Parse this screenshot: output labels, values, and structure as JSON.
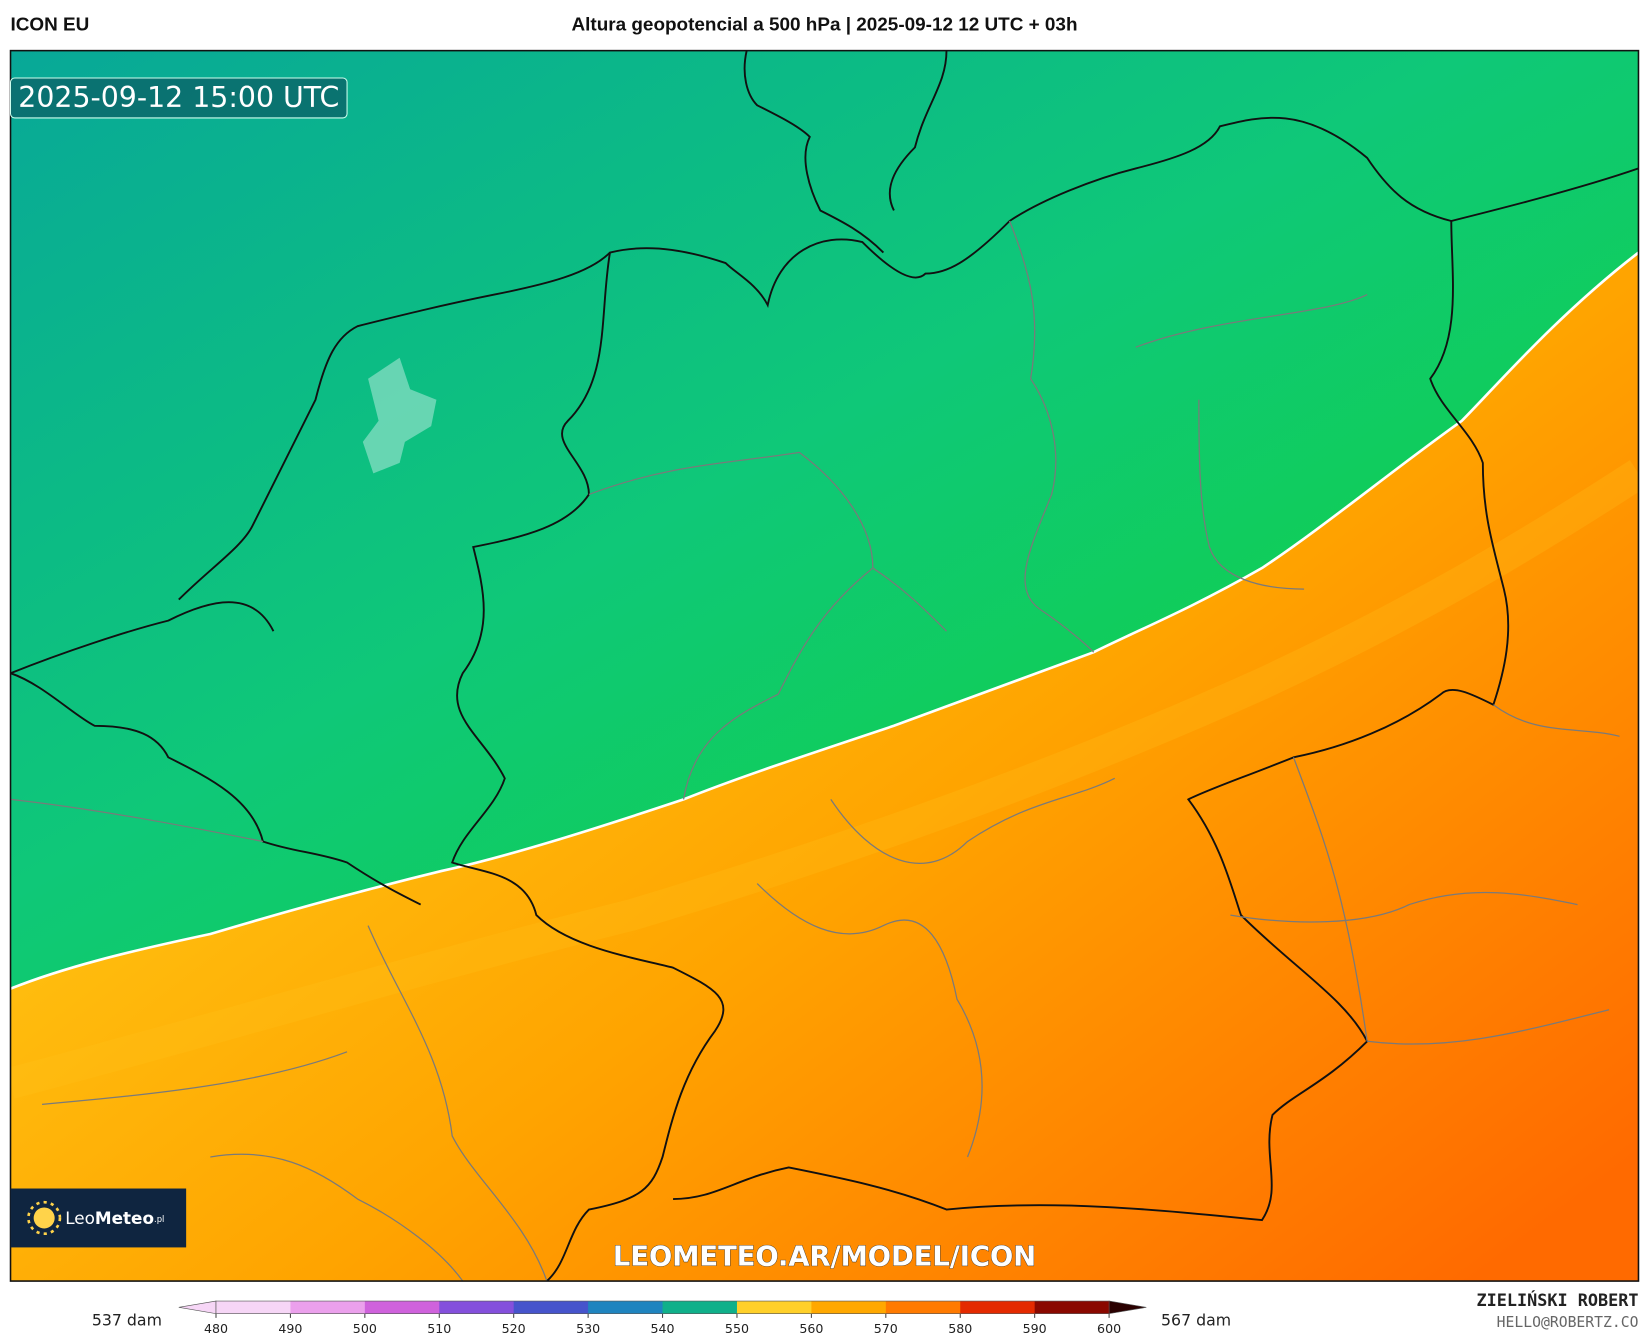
{
  "header": {
    "model": "ICON EU",
    "title": "Altura geopotencial a 500 hPa | 2025-09-12 12 UTC + 03h"
  },
  "map": {
    "valid_time": "2025-09-12 15:00 UTC",
    "logo_light": "Leo",
    "logo_bold": "Meteo",
    "logo_domain": ".pl",
    "watermark": "LEOMETEO.AR/MODEL/ICON"
  },
  "legend": {
    "min_label": "537 dam",
    "max_label": "567 dam",
    "range": [
      475,
      605
    ],
    "ticks": [
      480,
      490,
      500,
      510,
      520,
      530,
      540,
      550,
      560,
      570,
      580,
      590,
      600
    ],
    "colors": [
      "#f6d6f6",
      "#eba0ec",
      "#cf62dc",
      "#8450dc",
      "#4654cc",
      "#1f84bf",
      "#10b08a",
      "#ffd02a",
      "#ffa800",
      "#ff7a00",
      "#e42a00",
      "#8a0800",
      "#2a0000"
    ]
  },
  "credit": {
    "author": "ZIELIŃSKI ROBERT",
    "email": "HELLO@ROBERTZ.CO"
  }
}
